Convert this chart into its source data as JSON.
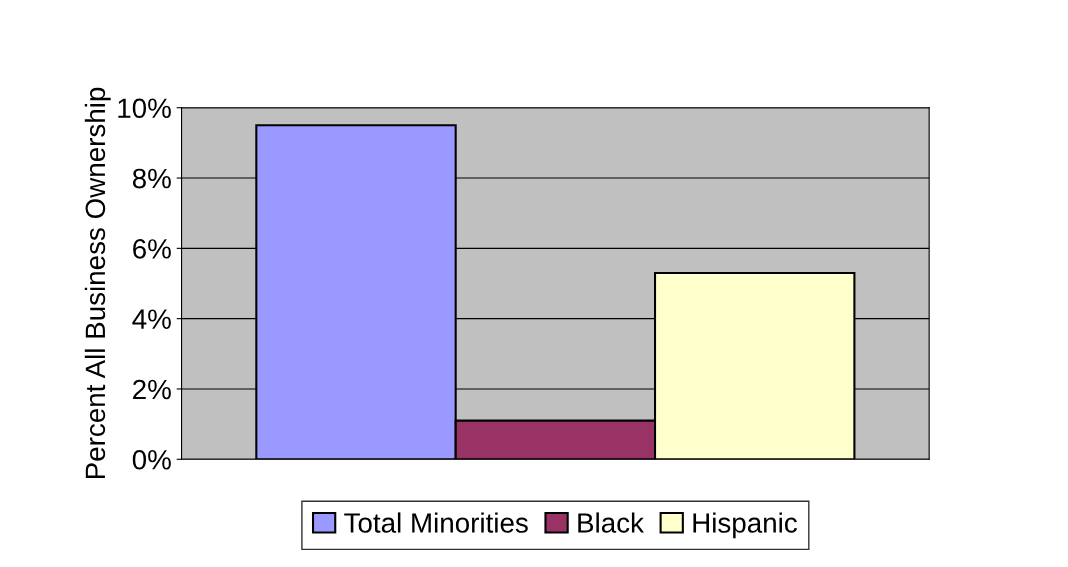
{
  "chart_data": {
    "type": "bar",
    "ylabel": "Percent All Business Ownership",
    "categories": [
      null
    ],
    "series": [
      {
        "name": "Total Minorities",
        "color": "#9999ff",
        "values": [
          9.5
        ]
      },
      {
        "name": "Black",
        "color": "#993366",
        "values": [
          1.1
        ]
      },
      {
        "name": "Hispanic",
        "color": "#ffffcc",
        "values": [
          5.3
        ]
      }
    ],
    "ylim": [
      0,
      10
    ],
    "yticks": [
      {
        "value": 0,
        "label": "0%"
      },
      {
        "value": 2,
        "label": "2%"
      },
      {
        "value": 4,
        "label": "4%"
      },
      {
        "value": 6,
        "label": "6%"
      },
      {
        "value": 8,
        "label": "8%"
      },
      {
        "value": 10,
        "label": "10%"
      }
    ],
    "grid": "y",
    "legend": "bottom"
  }
}
